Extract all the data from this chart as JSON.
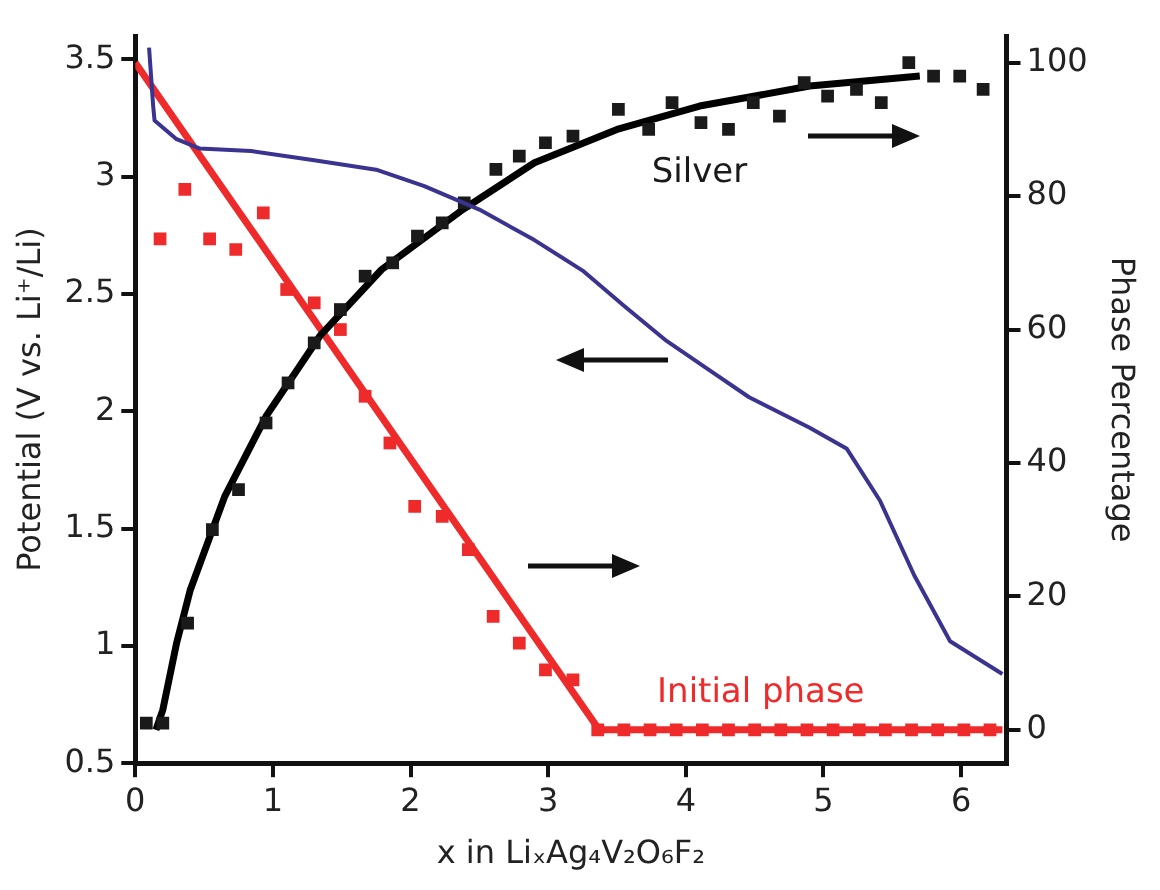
{
  "chart_data": {
    "type": "scatter",
    "xlabel": "x in LiₓAg₄V₂O₆F₂",
    "ylabel": "Potential (V vs. Li⁺/Li)",
    "y2label": "Phase Percentage",
    "xlim": [
      0,
      6.33
    ],
    "xticks": [
      0,
      1,
      2,
      3,
      4,
      5,
      6
    ],
    "ylim": [
      0.5,
      3.6
    ],
    "yticks": [
      {
        "value": 0.5,
        "label": "0.5"
      },
      1,
      1.5,
      2,
      2.5,
      3,
      3.5
    ],
    "y2lim": [
      -5,
      104
    ],
    "y2ticks": [
      0,
      20,
      40,
      60,
      80,
      100
    ],
    "grid": false,
    "legend": false,
    "series": [
      {
        "type": "line",
        "axis": "y",
        "color": "#3a338f",
        "marker": "none",
        "x": [
          0.1,
          0.13,
          0.14,
          0.3,
          0.47,
          0.84,
          1.3,
          1.75,
          2.1,
          2.5,
          2.9,
          3.25,
          3.55,
          3.86,
          4.16,
          4.46,
          4.9,
          5.17,
          5.41,
          5.66,
          5.92,
          6.3
        ],
        "values": [
          3.55,
          3.3,
          3.24,
          3.16,
          3.12,
          3.11,
          3.07,
          3.03,
          2.96,
          2.86,
          2.73,
          2.6,
          2.45,
          2.3,
          2.18,
          2.06,
          1.93,
          1.84,
          1.62,
          1.3,
          1.02,
          0.88
        ]
      },
      {
        "type": "scatter",
        "axis": "y2",
        "name": "Silver",
        "color": "#1a1a1a",
        "marker": "square",
        "x": [
          0.08,
          0.2,
          0.38,
          0.56,
          0.75,
          0.95,
          1.11,
          1.3,
          1.49,
          1.67,
          1.87,
          2.05,
          2.23,
          2.39,
          2.62,
          2.79,
          2.98,
          3.18,
          3.51,
          3.73,
          3.9,
          4.11,
          4.31,
          4.49,
          4.68,
          4.86,
          5.03,
          5.24,
          5.42,
          5.62,
          5.8,
          5.99,
          6.16
        ],
        "values": [
          1,
          1,
          16,
          30,
          36,
          46,
          52,
          58,
          63,
          68,
          70,
          74,
          76,
          79,
          84,
          86,
          88,
          89,
          93,
          90,
          94,
          91,
          90,
          94,
          92,
          97,
          95,
          96,
          94,
          100,
          98,
          98,
          96
        ]
      },
      {
        "type": "line",
        "axis": "y2",
        "color": "#000000",
        "marker": "none",
        "x": [
          0.15,
          0.2,
          0.3,
          0.4,
          0.65,
          0.95,
          1.34,
          1.79,
          2.38,
          2.9,
          3.5,
          4.1,
          4.9,
          5.7
        ],
        "values": [
          0,
          3,
          13,
          21,
          35,
          47,
          59,
          69,
          78,
          85,
          90,
          93.5,
          96.5,
          98
        ]
      },
      {
        "type": "scatter",
        "axis": "y2",
        "name": "Initial phase",
        "color": "#ee2a2a",
        "marker": "square",
        "x": [
          0.18,
          0.36,
          0.54,
          0.73,
          0.93,
          1.1,
          1.3,
          1.49,
          1.67,
          1.85,
          2.03,
          2.23,
          2.42,
          2.6,
          2.79,
          2.98,
          3.18,
          3.36,
          3.55,
          3.74,
          3.93,
          4.12,
          4.31,
          4.5,
          4.69,
          4.88,
          5.07,
          5.26,
          5.45,
          5.64,
          5.83,
          6.02,
          6.21
        ],
        "values": [
          73.6,
          81,
          73.6,
          72,
          77.5,
          66,
          64,
          60,
          50,
          43,
          33.5,
          32,
          27,
          17,
          13,
          9,
          7.5,
          0,
          0,
          0,
          0,
          0,
          0,
          0,
          0,
          0,
          0,
          0,
          0,
          0,
          0,
          0,
          0
        ]
      },
      {
        "type": "line",
        "axis": "y2",
        "color": "#ee2a2a",
        "marker": "none",
        "x": [
          0,
          3.37,
          6.3
        ],
        "values": [
          100,
          0,
          0
        ]
      }
    ]
  }
}
